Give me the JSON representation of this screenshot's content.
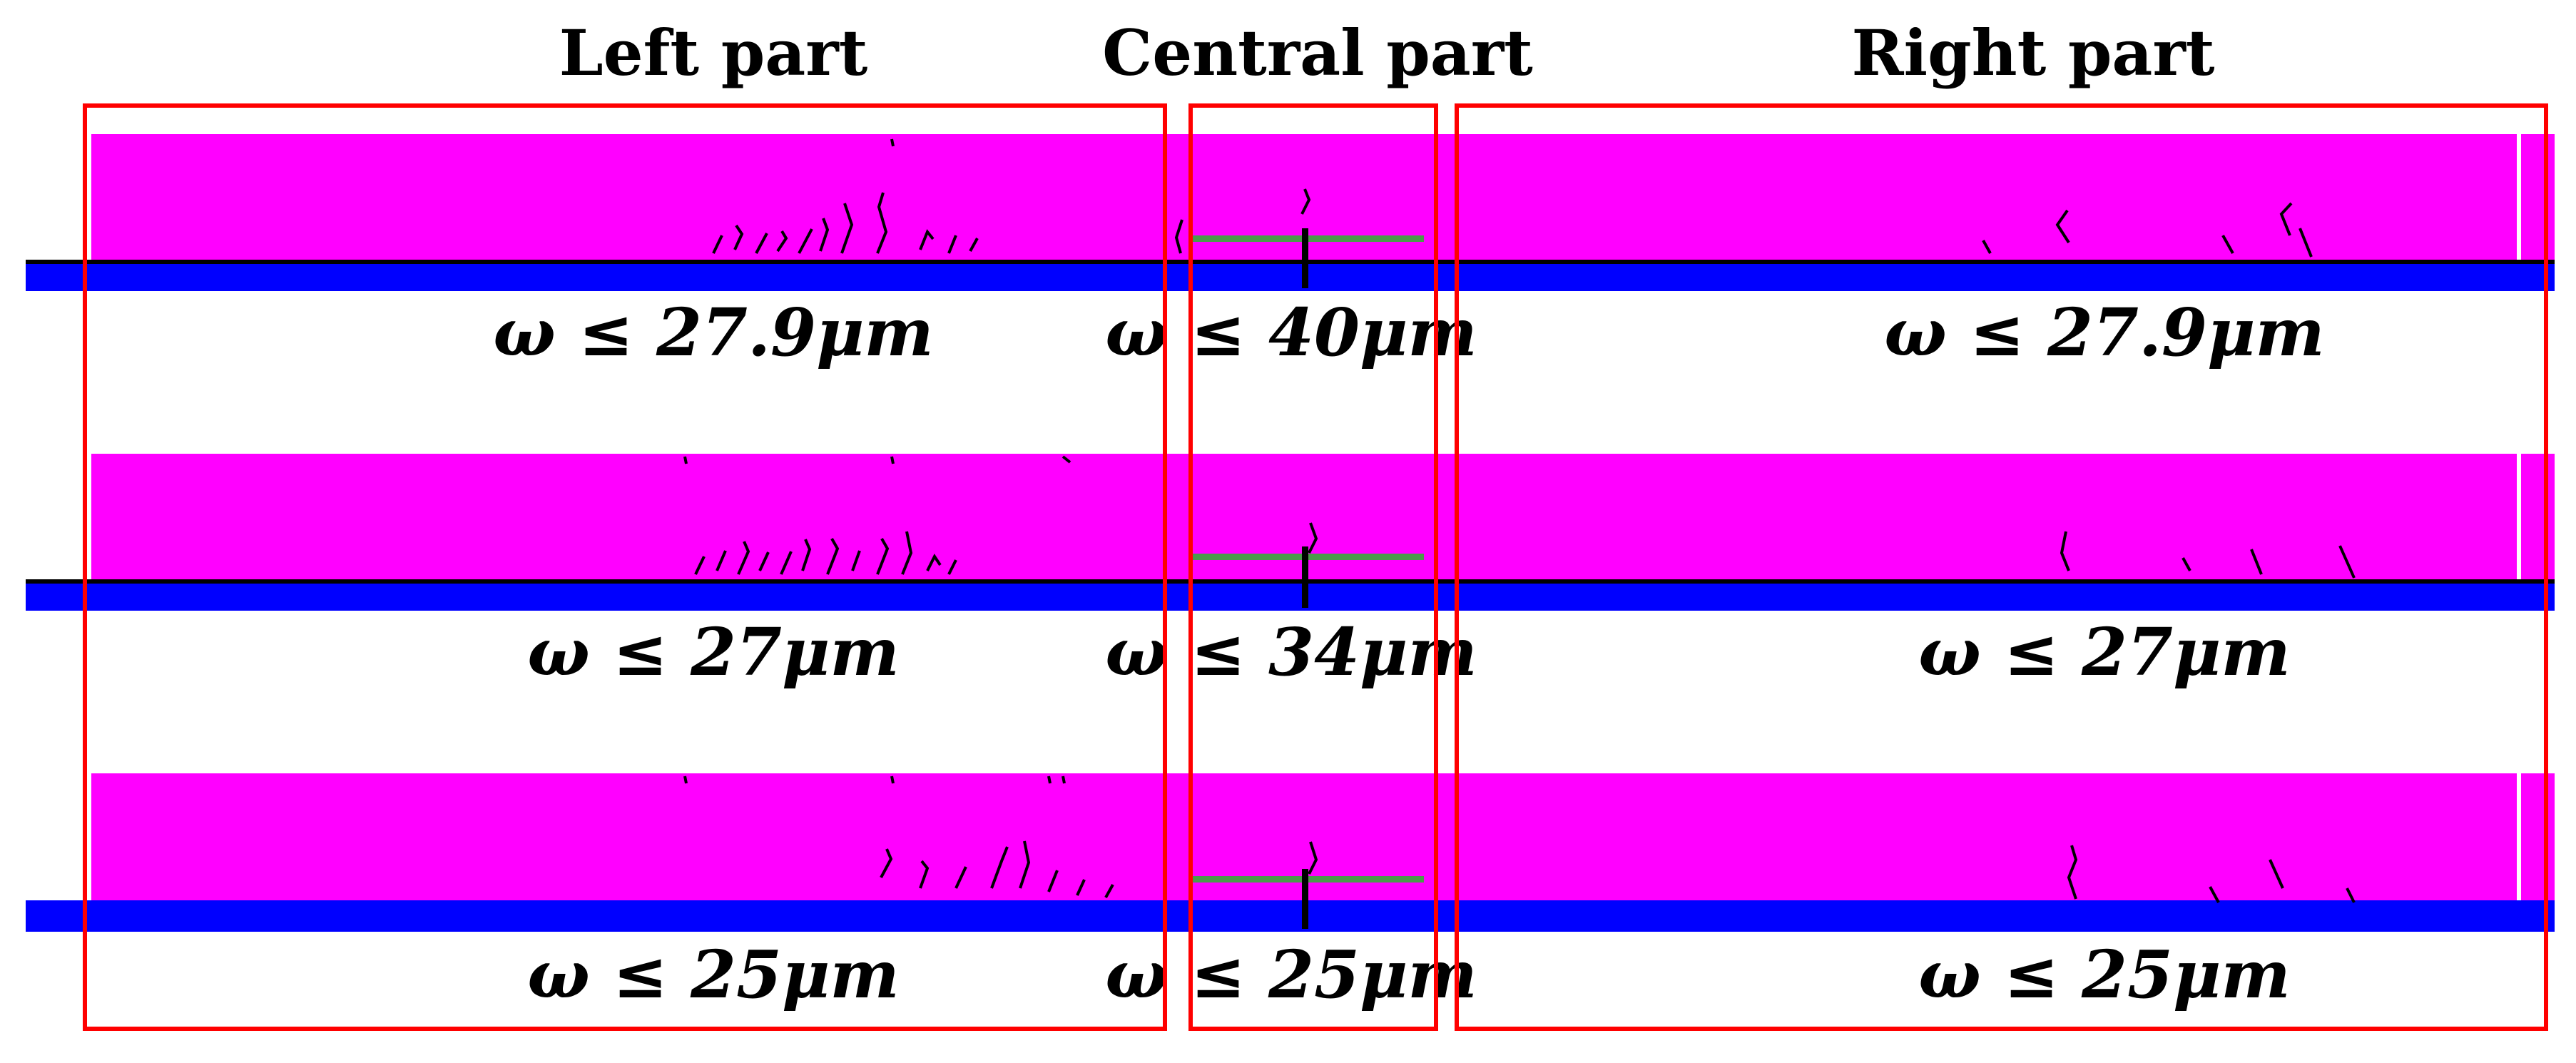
{
  "titles": {
    "left": "Left part",
    "central": "Central part",
    "right": "Right part"
  },
  "rows": [
    {
      "left": "ω ≤ 27.9μm",
      "central": "ω ≤ 40μm",
      "right": "ω ≤ 27.9μm"
    },
    {
      "left": "ω ≤ 27μm",
      "central": "ω ≤ 34μm",
      "right": "ω ≤ 27μm"
    },
    {
      "left": "ω ≤ 25μm",
      "central": "ω ≤ 25μm",
      "right": "ω ≤ 25μm"
    }
  ],
  "colors": {
    "beam": "#ff00ff",
    "support": "#0000ff",
    "box": "#ff0000",
    "gauge": "#4a9a4a"
  }
}
